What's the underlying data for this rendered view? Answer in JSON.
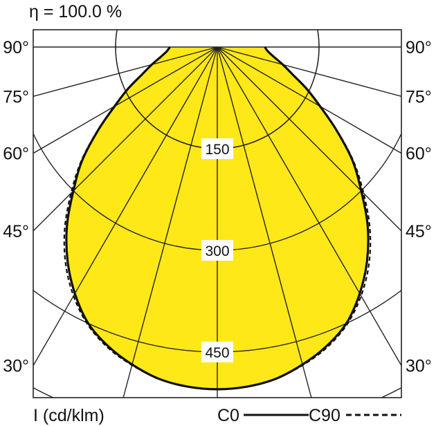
{
  "efficiency_label": "η = 100.0 %",
  "chart_data": {
    "type": "polar_light_distribution",
    "title": "η = 100.0 %",
    "unit_label": "I (cd/klm)",
    "angle_labels": [
      "90°",
      "75°",
      "60°",
      "45°",
      "30°"
    ],
    "angle_ticks_deg": [
      90,
      75,
      60,
      45,
      30
    ],
    "radial_rings": [
      150,
      300,
      450
    ],
    "radial_ring_labels": [
      "150",
      "300",
      "450"
    ],
    "r_max": 510,
    "legend": [
      {
        "name": "C0",
        "line_style": "solid"
      },
      {
        "name": "C90",
        "line_style": "dashed"
      }
    ],
    "fill_color": "#ffe818",
    "outline_color": "#111111",
    "series": [
      {
        "name": "C0",
        "angles_deg": [
          0,
          5,
          10,
          15,
          20,
          25,
          30,
          35,
          40,
          45,
          50,
          55,
          60,
          65,
          70,
          75,
          80,
          85,
          90
        ],
        "values": [
          505,
          503,
          497,
          485,
          470,
          450,
          420,
          385,
          345,
          300,
          260,
          215,
          175,
          145,
          118,
          100,
          85,
          75,
          70
        ]
      },
      {
        "name": "C90",
        "angles_deg": [
          0,
          5,
          10,
          15,
          20,
          25,
          30,
          35,
          40,
          45,
          50,
          55,
          60,
          65,
          70,
          75,
          80,
          85,
          90
        ],
        "values": [
          505,
          503,
          497,
          486,
          472,
          452,
          424,
          390,
          350,
          305,
          262,
          216,
          176,
          145,
          118,
          100,
          85,
          75,
          70
        ]
      }
    ]
  }
}
